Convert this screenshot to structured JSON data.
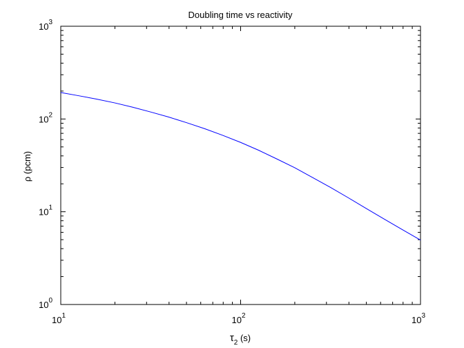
{
  "chart_data": {
    "type": "line",
    "title": "Doubling time vs reactivity",
    "xlabel": {
      "base": "τ",
      "sub": "2",
      "unit": " (s)"
    },
    "ylabel": "ρ (pcm)",
    "xscale": "log",
    "yscale": "log",
    "xlim": [
      10,
      1000
    ],
    "ylim": [
      1,
      1000
    ],
    "grid": false,
    "legend": "none",
    "xticks": [
      {
        "base": "10",
        "exp": "1",
        "value": 10
      },
      {
        "base": "10",
        "exp": "2",
        "value": 100
      },
      {
        "base": "10",
        "exp": "3",
        "value": 1000
      }
    ],
    "yticks": [
      {
        "base": "10",
        "exp": "0",
        "value": 1
      },
      {
        "base": "10",
        "exp": "1",
        "value": 10
      },
      {
        "base": "10",
        "exp": "2",
        "value": 100
      },
      {
        "base": "10",
        "exp": "3",
        "value": 1000
      }
    ],
    "series": [
      {
        "color": "#0000ff",
        "x": [
          10,
          12.6,
          15.8,
          20,
          25.1,
          31.6,
          39.8,
          50.1,
          63.1,
          79.4,
          100,
          126,
          158,
          200,
          251,
          316,
          398,
          501,
          631,
          794,
          1000
        ],
        "y": [
          193,
          178,
          164,
          149,
          134,
          119,
          105,
          91.2,
          78.6,
          66.7,
          55.9,
          46.0,
          37.3,
          29.8,
          23.4,
          18.3,
          14.1,
          10.8,
          8.3,
          6.4,
          4.95
        ]
      }
    ]
  }
}
